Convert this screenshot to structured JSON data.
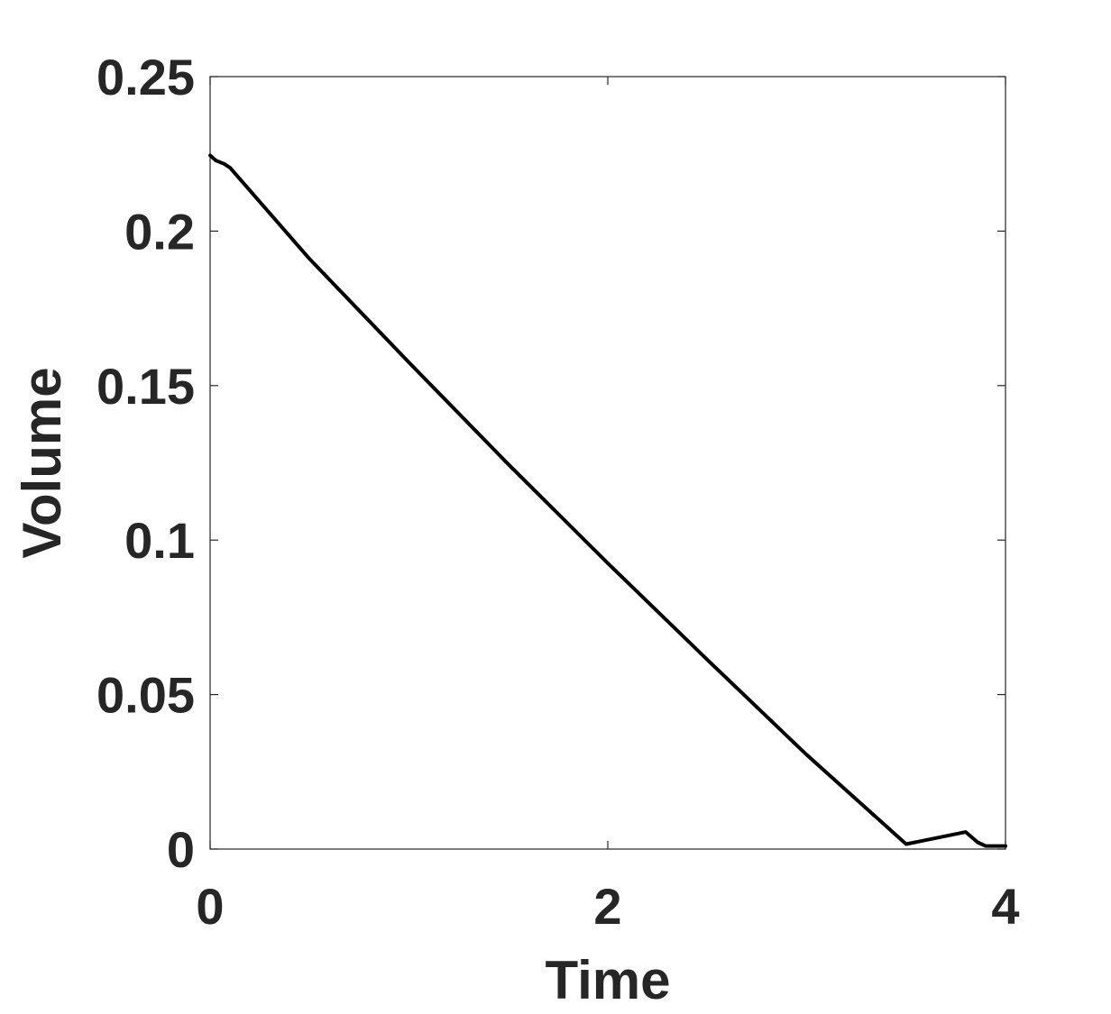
{
  "chart_data": {
    "type": "line",
    "title": "",
    "xlabel": "Time",
    "ylabel": "Volume",
    "xlim": [
      0,
      4
    ],
    "ylim": [
      0,
      0.25
    ],
    "x_ticks": [
      0,
      2,
      4
    ],
    "x_tick_labels": [
      "0",
      "2",
      "4"
    ],
    "y_ticks": [
      0,
      0.05,
      0.1,
      0.15,
      0.2,
      0.25
    ],
    "y_tick_labels": [
      "0",
      "0.05",
      "0.1",
      "0.15",
      "0.2",
      "0.25"
    ],
    "grid": false,
    "legend": "none",
    "line_color": "#000000",
    "axis_color": "#262626",
    "series": [
      {
        "x": [
          0,
          0.03,
          0.07,
          0.1,
          0.5,
          1.0,
          1.5,
          2.0,
          2.5,
          3.0,
          3.5,
          3.8,
          3.86,
          3.9,
          4.0
        ],
        "y": [
          0.2245,
          0.2228,
          0.2218,
          0.2205,
          0.191,
          0.1575,
          0.1245,
          0.0925,
          0.0613,
          0.0305,
          0.0016,
          0.0055,
          0.0022,
          0.001,
          0.001
        ]
      }
    ]
  }
}
